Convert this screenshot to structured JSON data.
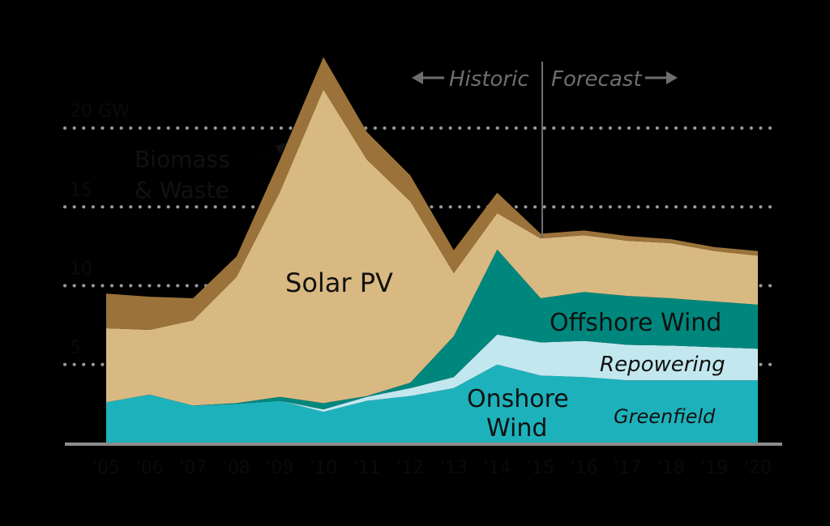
{
  "chart_data": {
    "type": "area",
    "stacked": true,
    "title": "",
    "xlabel": "",
    "ylabel": "",
    "y_unit_label": "20 GW",
    "categories": [
      "'05",
      "'06",
      "'07",
      "'08",
      "'09",
      "'10",
      "'11",
      "'12",
      "'13",
      "'14",
      "'15",
      "'16",
      "'17",
      "'18",
      "'19",
      "'20"
    ],
    "yticks": [
      5,
      10,
      15,
      20
    ],
    "ytick_labels": [
      "5",
      "10",
      "15",
      "20 GW"
    ],
    "ylim": [
      0,
      25
    ],
    "grid": "dotted horizontal",
    "series": [
      {
        "name": "Onshore Wind – Greenfield",
        "color": "#1db2bb",
        "values": [
          2.6,
          3.1,
          2.4,
          2.5,
          2.7,
          2.0,
          2.7,
          3.0,
          3.5,
          5.0,
          4.3,
          4.2,
          4.0,
          4.0,
          4.0,
          4.0
        ]
      },
      {
        "name": "Onshore Wind – Repowering",
        "color": "#c2e7ef",
        "values": [
          0,
          0,
          0,
          0,
          0,
          0.15,
          0.25,
          0.5,
          0.7,
          1.9,
          2.1,
          2.3,
          2.25,
          2.2,
          2.1,
          2.0
        ]
      },
      {
        "name": "Offshore Wind",
        "color": "#00877d",
        "values": [
          0,
          0,
          0,
          0.05,
          0.25,
          0.4,
          0.05,
          0.35,
          2.6,
          5.4,
          2.8,
          3.1,
          3.1,
          3.0,
          2.9,
          2.8
        ]
      },
      {
        "name": "Solar PV",
        "color": "#d9b982",
        "values": [
          4.7,
          4.1,
          5.4,
          8.0,
          13.0,
          19.9,
          15.0,
          11.5,
          4.0,
          2.3,
          3.8,
          3.6,
          3.5,
          3.5,
          3.2,
          3.1
        ]
      },
      {
        "name": "Biomass & Waste",
        "color": "#9b733a",
        "values": [
          2.2,
          2.1,
          1.4,
          1.3,
          2.05,
          2.05,
          1.75,
          1.65,
          1.45,
          1.3,
          0.3,
          0.3,
          0.3,
          0.25,
          0.25,
          0.3
        ]
      }
    ],
    "annotations": {
      "historic": "Historic",
      "forecast": "Forecast",
      "divider_after": "'14"
    },
    "labels": {
      "solar": "Solar PV",
      "offshore": "Offshore Wind",
      "repowering": "Repowering",
      "onshore_line1": "Onshore",
      "onshore_line2": "Wind",
      "greenfield": "Greenfield",
      "biomass_line1": "Biomass",
      "biomass_line2": "& Waste"
    }
  }
}
